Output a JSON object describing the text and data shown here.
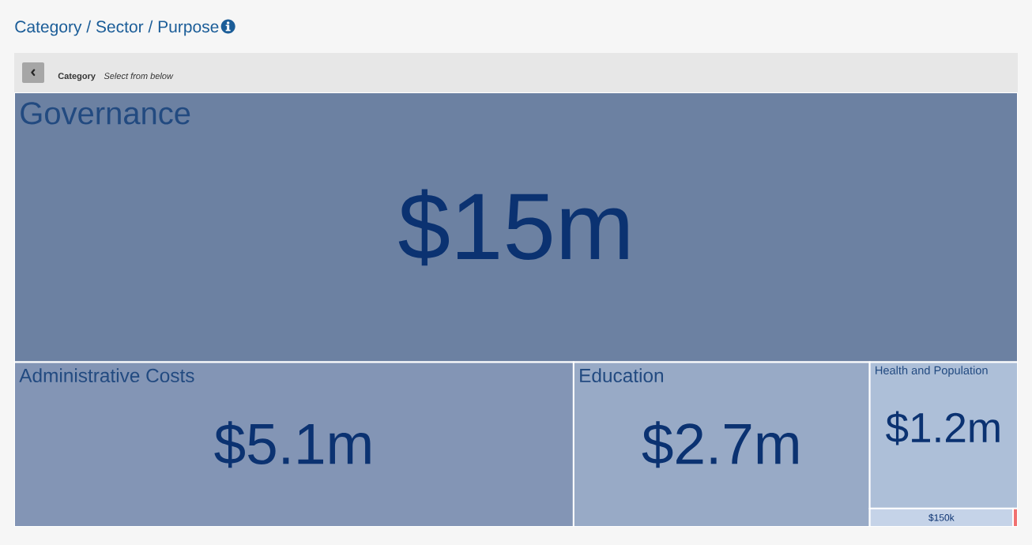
{
  "chart_data": {
    "type": "other",
    "title": "Category / Sector / Purpose",
    "annotations": [
      "Category",
      "Select from below"
    ],
    "categories": [
      "Governance",
      "Administrative Costs",
      "Education",
      "Health and Population",
      null,
      null
    ],
    "values": [
      15000000,
      5100000,
      2700000,
      1200000,
      150000,
      null
    ],
    "value_labels": [
      "$15m",
      "$5.1m",
      "$2.7m",
      "$1.2m",
      "$150k",
      null
    ],
    "colors": [
      "#6c81a2",
      "#8395b5",
      "#98aac6",
      "#adbfd8",
      "#c5d3e8",
      "#f07070"
    ]
  }
}
